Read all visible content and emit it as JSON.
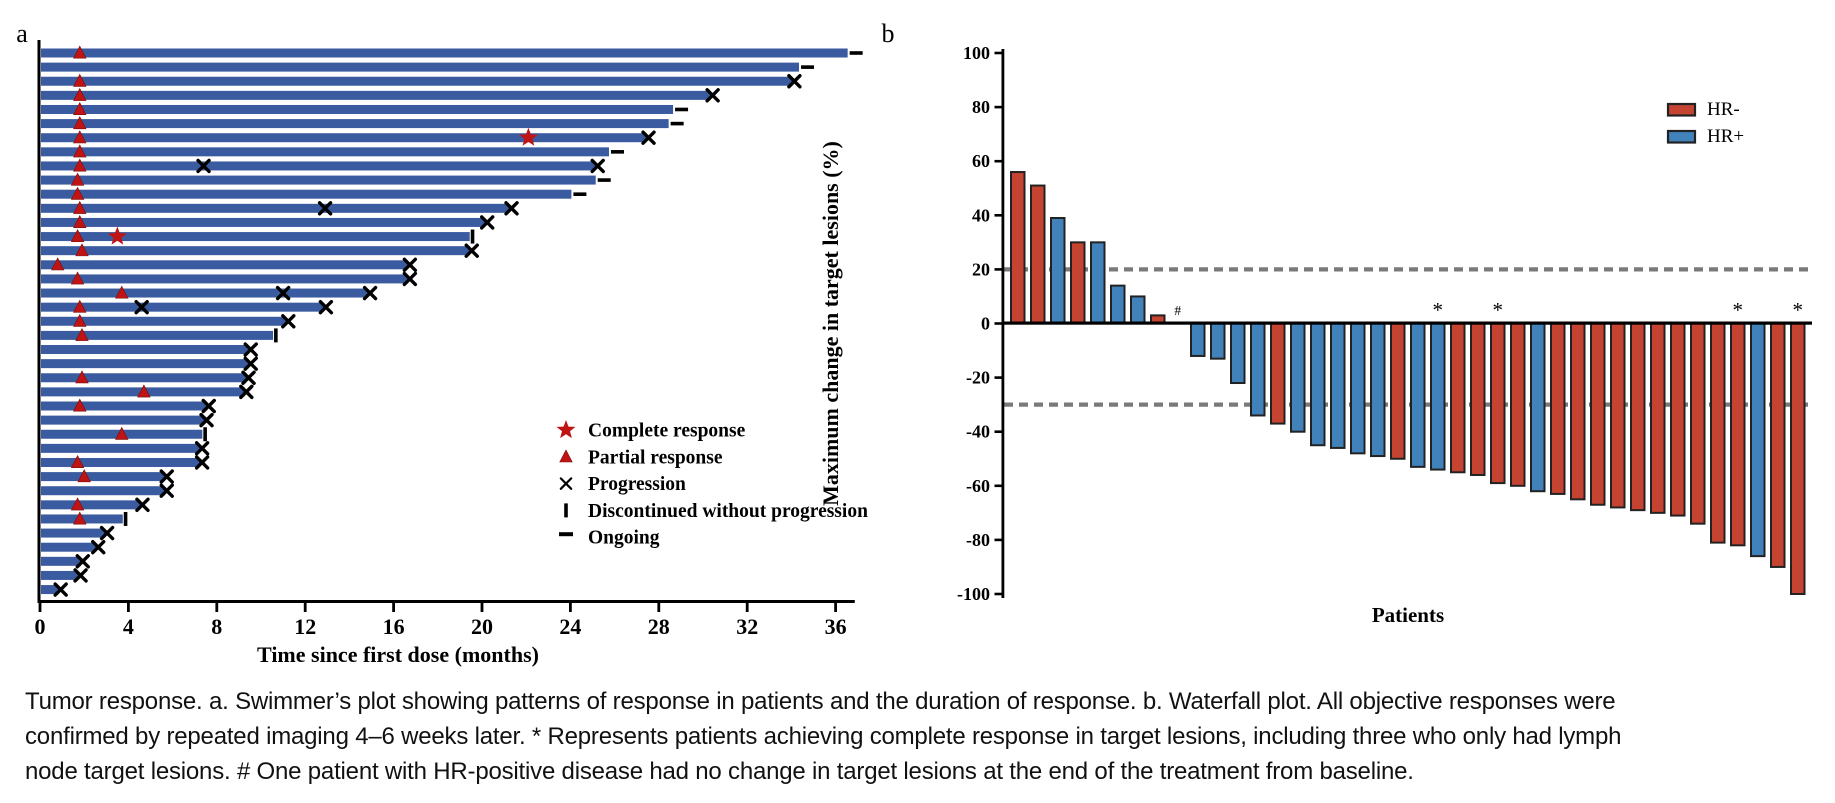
{
  "figure": {
    "panel_a_label": "a",
    "panel_b_label": "b"
  },
  "caption": {
    "lines": [
      "Tumor response. a. Swimmer’s plot showing patterns of response in patients and the duration of response. b. Waterfall plot. All objective responses were",
      "confirmed by repeated imaging 4–6 weeks later. * Represents patients achieving complete response in target lesions, including three who only had lymph",
      "node target lesions. # One patient with HR-positive disease had no change in target lesions at the end of the treatment from baseline."
    ]
  },
  "colors": {
    "swimmer_bar": "#3a5ba0",
    "response_red": "#c01414",
    "black": "#000000",
    "waterfall_red": "#c44431",
    "waterfall_blue": "#4182bb",
    "bar_border": "#222222",
    "ref_line_gray": "#7a7a7a"
  },
  "chart_data": [
    {
      "type": "swimmer",
      "panel": "a",
      "xlabel": "Time since first dose (months)",
      "xticks": [
        0,
        4,
        8,
        12,
        16,
        20,
        24,
        28,
        32,
        36
      ],
      "xlim": [
        0,
        36.8
      ],
      "legend": [
        {
          "symbol": "star",
          "label": "Complete response"
        },
        {
          "symbol": "triangle",
          "label": "Partial response"
        },
        {
          "symbol": "x",
          "label": "Progression"
        },
        {
          "symbol": "vbar",
          "label": "Discontinued without progression"
        },
        {
          "symbol": "dash",
          "label": "Ongoing"
        }
      ],
      "patients": [
        {
          "duration": 36.5,
          "end": "ongoing",
          "triangle": 1.8
        },
        {
          "duration": 34.3,
          "end": "ongoing"
        },
        {
          "duration": 34.0,
          "end": "progression",
          "triangle": 1.8
        },
        {
          "duration": 30.3,
          "end": "progression",
          "triangle": 1.8
        },
        {
          "duration": 28.6,
          "end": "ongoing",
          "triangle": 1.8
        },
        {
          "duration": 28.4,
          "end": "ongoing",
          "triangle": 1.8
        },
        {
          "duration": 27.4,
          "end": "progression",
          "triangle": 1.8,
          "star": 22.1
        },
        {
          "duration": 25.7,
          "end": "ongoing",
          "triangle": 1.8
        },
        {
          "duration": 25.1,
          "end": "progression",
          "triangle": 1.8,
          "xs": [
            7.4
          ]
        },
        {
          "duration": 25.1,
          "end": "ongoing",
          "triangle": 1.7
        },
        {
          "duration": 24.0,
          "end": "ongoing",
          "triangle": 1.7
        },
        {
          "duration": 21.2,
          "end": "progression",
          "triangle": 1.8,
          "xs": [
            12.9
          ]
        },
        {
          "duration": 20.1,
          "end": "progression",
          "triangle": 1.8
        },
        {
          "duration": 19.4,
          "end": "discontinued",
          "triangle": 1.7,
          "star": 3.5
        },
        {
          "duration": 19.4,
          "end": "progression",
          "triangle": 1.9
        },
        {
          "duration": 16.6,
          "end": "progression",
          "triangle": 0.8
        },
        {
          "duration": 16.6,
          "end": "progression",
          "triangle": 1.7
        },
        {
          "duration": 14.8,
          "end": "progression",
          "triangle": 3.7,
          "xs": [
            11.0
          ]
        },
        {
          "duration": 12.8,
          "end": "progression",
          "triangle": 1.8,
          "xs": [
            4.6
          ]
        },
        {
          "duration": 11.1,
          "end": "progression",
          "triangle": 1.8
        },
        {
          "duration": 10.5,
          "end": "discontinued",
          "triangle": 1.9
        },
        {
          "duration": 9.4,
          "end": "progression"
        },
        {
          "duration": 9.4,
          "end": "progression"
        },
        {
          "duration": 9.3,
          "end": "progression",
          "triangle": 1.9
        },
        {
          "duration": 9.2,
          "end": "progression",
          "triangle": 4.7
        },
        {
          "duration": 7.5,
          "end": "progression",
          "triangle": 1.8
        },
        {
          "duration": 7.4,
          "end": "progression"
        },
        {
          "duration": 7.3,
          "end": "discontinued",
          "triangle": 3.7
        },
        {
          "duration": 7.2,
          "end": "progression"
        },
        {
          "duration": 7.2,
          "end": "progression",
          "triangle": 1.7
        },
        {
          "duration": 5.6,
          "end": "progression",
          "triangle": 2.0
        },
        {
          "duration": 5.6,
          "end": "progression"
        },
        {
          "duration": 4.5,
          "end": "progression",
          "triangle": 1.7
        },
        {
          "duration": 3.7,
          "end": "discontinued",
          "triangle": 1.8
        },
        {
          "duration": 2.9,
          "end": "progression"
        },
        {
          "duration": 2.5,
          "end": "progression"
        },
        {
          "duration": 1.8,
          "end": "progression"
        },
        {
          "duration": 1.7,
          "end": "progression"
        },
        {
          "duration": 0.8,
          "end": "progression"
        }
      ]
    },
    {
      "type": "waterfall",
      "panel": "b",
      "ylabel": "Maximum change in target lesions (%)",
      "xlabel": "Patients",
      "ylim": [
        -100,
        100
      ],
      "yticks": [
        100,
        80,
        60,
        40,
        20,
        0,
        -20,
        -40,
        -60,
        -80,
        -100
      ],
      "ref_lines": [
        20,
        -30
      ],
      "legend": [
        {
          "label": "HR-",
          "group": "HR-"
        },
        {
          "label": "HR+",
          "group": "HR+"
        }
      ],
      "patients": [
        {
          "value": 56,
          "group": "HR-"
        },
        {
          "value": 51,
          "group": "HR-"
        },
        {
          "value": 39,
          "group": "HR+"
        },
        {
          "value": 30,
          "group": "HR-"
        },
        {
          "value": 30,
          "group": "HR+"
        },
        {
          "value": 14,
          "group": "HR+"
        },
        {
          "value": 10,
          "group": "HR+"
        },
        {
          "value": 3,
          "group": "HR-"
        },
        {
          "value": 0,
          "group": "HR+",
          "note": "#"
        },
        {
          "value": -12,
          "group": "HR+"
        },
        {
          "value": -13,
          "group": "HR+"
        },
        {
          "value": -22,
          "group": "HR+"
        },
        {
          "value": -34,
          "group": "HR+"
        },
        {
          "value": -37,
          "group": "HR-"
        },
        {
          "value": -40,
          "group": "HR+"
        },
        {
          "value": -45,
          "group": "HR+"
        },
        {
          "value": -46,
          "group": "HR+"
        },
        {
          "value": -48,
          "group": "HR+"
        },
        {
          "value": -49,
          "group": "HR+"
        },
        {
          "value": -50,
          "group": "HR-"
        },
        {
          "value": -53,
          "group": "HR+"
        },
        {
          "value": -54,
          "group": "HR+",
          "note": "*"
        },
        {
          "value": -55,
          "group": "HR-"
        },
        {
          "value": -56,
          "group": "HR-"
        },
        {
          "value": -59,
          "group": "HR-",
          "note": "*"
        },
        {
          "value": -60,
          "group": "HR-"
        },
        {
          "value": -62,
          "group": "HR+"
        },
        {
          "value": -63,
          "group": "HR-"
        },
        {
          "value": -65,
          "group": "HR-"
        },
        {
          "value": -67,
          "group": "HR-"
        },
        {
          "value": -68,
          "group": "HR-"
        },
        {
          "value": -69,
          "group": "HR-"
        },
        {
          "value": -70,
          "group": "HR-"
        },
        {
          "value": -71,
          "group": "HR-"
        },
        {
          "value": -74,
          "group": "HR-"
        },
        {
          "value": -81,
          "group": "HR-"
        },
        {
          "value": -82,
          "group": "HR-",
          "note": "*"
        },
        {
          "value": -86,
          "group": "HR+"
        },
        {
          "value": -90,
          "group": "HR-"
        },
        {
          "value": -100,
          "group": "HR-",
          "note": "*"
        }
      ]
    }
  ]
}
